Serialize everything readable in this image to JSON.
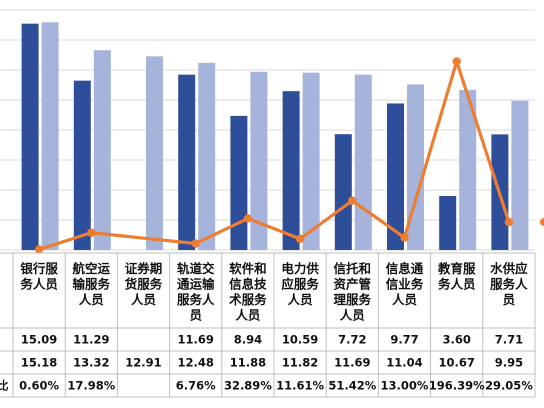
{
  "colors": {
    "series_a": "#2F4E9A",
    "series_b": "#A6B3DA",
    "line": "#ED7D31",
    "grid": "#D9D9D9",
    "table_border": "#BFBFBF"
  },
  "chart_data": {
    "type": "bar",
    "categories": [
      [
        "银行服",
        "务人员"
      ],
      [
        "航空运",
        "输服务",
        "人员"
      ],
      [
        "证券期",
        "货服务",
        "人员"
      ],
      [
        "轨道交",
        "通运输",
        "服务人",
        "员"
      ],
      [
        "软件和",
        "信息技",
        "术服务",
        "人员"
      ],
      [
        "电力供",
        "应服务",
        "人员"
      ],
      [
        "信托和",
        "资产管",
        "理服务",
        "人员"
      ],
      [
        "信息通",
        "信业务",
        "人员"
      ],
      [
        "教育服",
        "务人员"
      ],
      [
        "水供应",
        "服务人",
        "员"
      ]
    ],
    "series": [
      {
        "values": [
          15.09,
          11.29,
          null,
          11.69,
          8.94,
          10.59,
          7.72,
          9.77,
          3.6,
          7.71
        ],
        "labels": [
          "15.09",
          "11.29",
          "",
          "11.69",
          "8.94",
          "10.59",
          "7.72",
          "9.77",
          "3.60",
          "7.71"
        ]
      },
      {
        "values": [
          15.18,
          13.32,
          12.91,
          12.48,
          11.88,
          11.82,
          11.69,
          11.04,
          10.67,
          9.95
        ],
        "labels": [
          "15.18",
          "13.32",
          "12.91",
          "12.48",
          "11.88",
          "11.82",
          "11.69",
          "11.04",
          "10.67",
          "9.95"
        ]
      },
      {
        "type": "line",
        "row_label": "比",
        "values": [
          0.6,
          17.98,
          null,
          6.76,
          32.89,
          11.61,
          51.42,
          13.0,
          196.39,
          29.05
        ],
        "labels": [
          "0.60%",
          "17.98%",
          "",
          "6.76%",
          "32.89%",
          "11.61%",
          "51.42%",
          "13.00%",
          "196.39%",
          "29.05%"
        ]
      }
    ],
    "ylim": [
      0,
      16
    ],
    "y2lim": [
      0,
      250
    ],
    "grid": true,
    "legend": "none"
  }
}
